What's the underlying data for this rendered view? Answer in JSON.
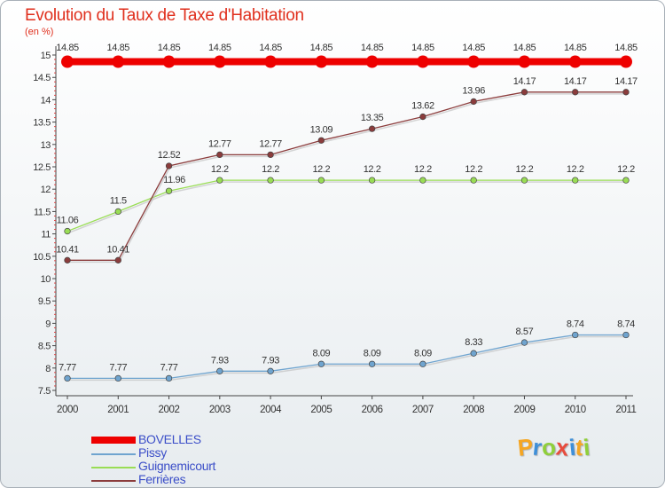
{
  "chart_data": {
    "type": "line",
    "title": "Evolution du Taux de Taxe d'Habitation",
    "subtitle": "(en %)",
    "xlabel": "",
    "ylabel": "(en %)",
    "ylim": [
      7.5,
      15
    ],
    "grid": false,
    "legend_position": "bottom-left",
    "x": [
      "2000",
      "2001",
      "2002",
      "2003",
      "2004",
      "2005",
      "2006",
      "2007",
      "2008",
      "2009",
      "2010",
      "2011"
    ],
    "yticks": [
      "7.5",
      "8",
      "8.5",
      "9",
      "9.5",
      "10",
      "10.5",
      "11",
      "11.5",
      "12",
      "12.5",
      "13",
      "13.5",
      "14",
      "14.5",
      "15"
    ],
    "series": [
      {
        "name": "BOVELLES",
        "color": "#ee0000",
        "values": [
          14.85,
          14.85,
          14.85,
          14.85,
          14.85,
          14.85,
          14.85,
          14.85,
          14.85,
          14.85,
          14.85,
          14.85
        ],
        "labels": [
          "14.85",
          "14.85",
          "14.85",
          "14.85",
          "14.85",
          "14.85",
          "14.85",
          "14.85",
          "14.85",
          "14.85",
          "14.85",
          "14.85"
        ]
      },
      {
        "name": "Pissy",
        "color": "#6fa4cf",
        "values": [
          7.77,
          7.77,
          7.77,
          7.93,
          7.93,
          8.09,
          8.09,
          8.09,
          8.33,
          8.57,
          8.74,
          8.74
        ],
        "labels": [
          "7.77",
          "7.77",
          "7.77",
          "7.93",
          "7.93",
          "8.09",
          "8.09",
          "8.09",
          "8.33",
          "8.57",
          "8.74",
          "8.74"
        ]
      },
      {
        "name": "Guignemicourt",
        "color": "#99dd55",
        "values": [
          11.06,
          11.5,
          11.96,
          12.2,
          12.2,
          12.2,
          12.2,
          12.2,
          12.2,
          12.2,
          12.2,
          12.2
        ],
        "labels": [
          "11.06",
          "11.5",
          "11.96",
          "12.2",
          "12.2",
          "12.2",
          "12.2",
          "12.2",
          "12.2",
          "12.2",
          "12.2",
          "12.2"
        ]
      },
      {
        "name": "Ferrières",
        "color": "#8b3c3c",
        "values": [
          10.41,
          10.41,
          12.52,
          12.77,
          12.77,
          13.09,
          13.35,
          13.62,
          13.96,
          14.17,
          14.17,
          14.17
        ],
        "labels": [
          "10.41",
          "10.41",
          "12.52",
          "12.77",
          "12.77",
          "13.09",
          "13.35",
          "13.62",
          "13.96",
          "14.17",
          "14.17",
          "14.17"
        ]
      }
    ]
  },
  "logo": {
    "letters": [
      "P",
      "r",
      "o",
      "x",
      "i",
      "t",
      "i"
    ],
    "colors": [
      "#f5a623",
      "#3e8fd8",
      "#8fcf3a",
      "#e84c3d",
      "#3e8fd8",
      "#f5a623",
      "#8fcf3a"
    ]
  }
}
